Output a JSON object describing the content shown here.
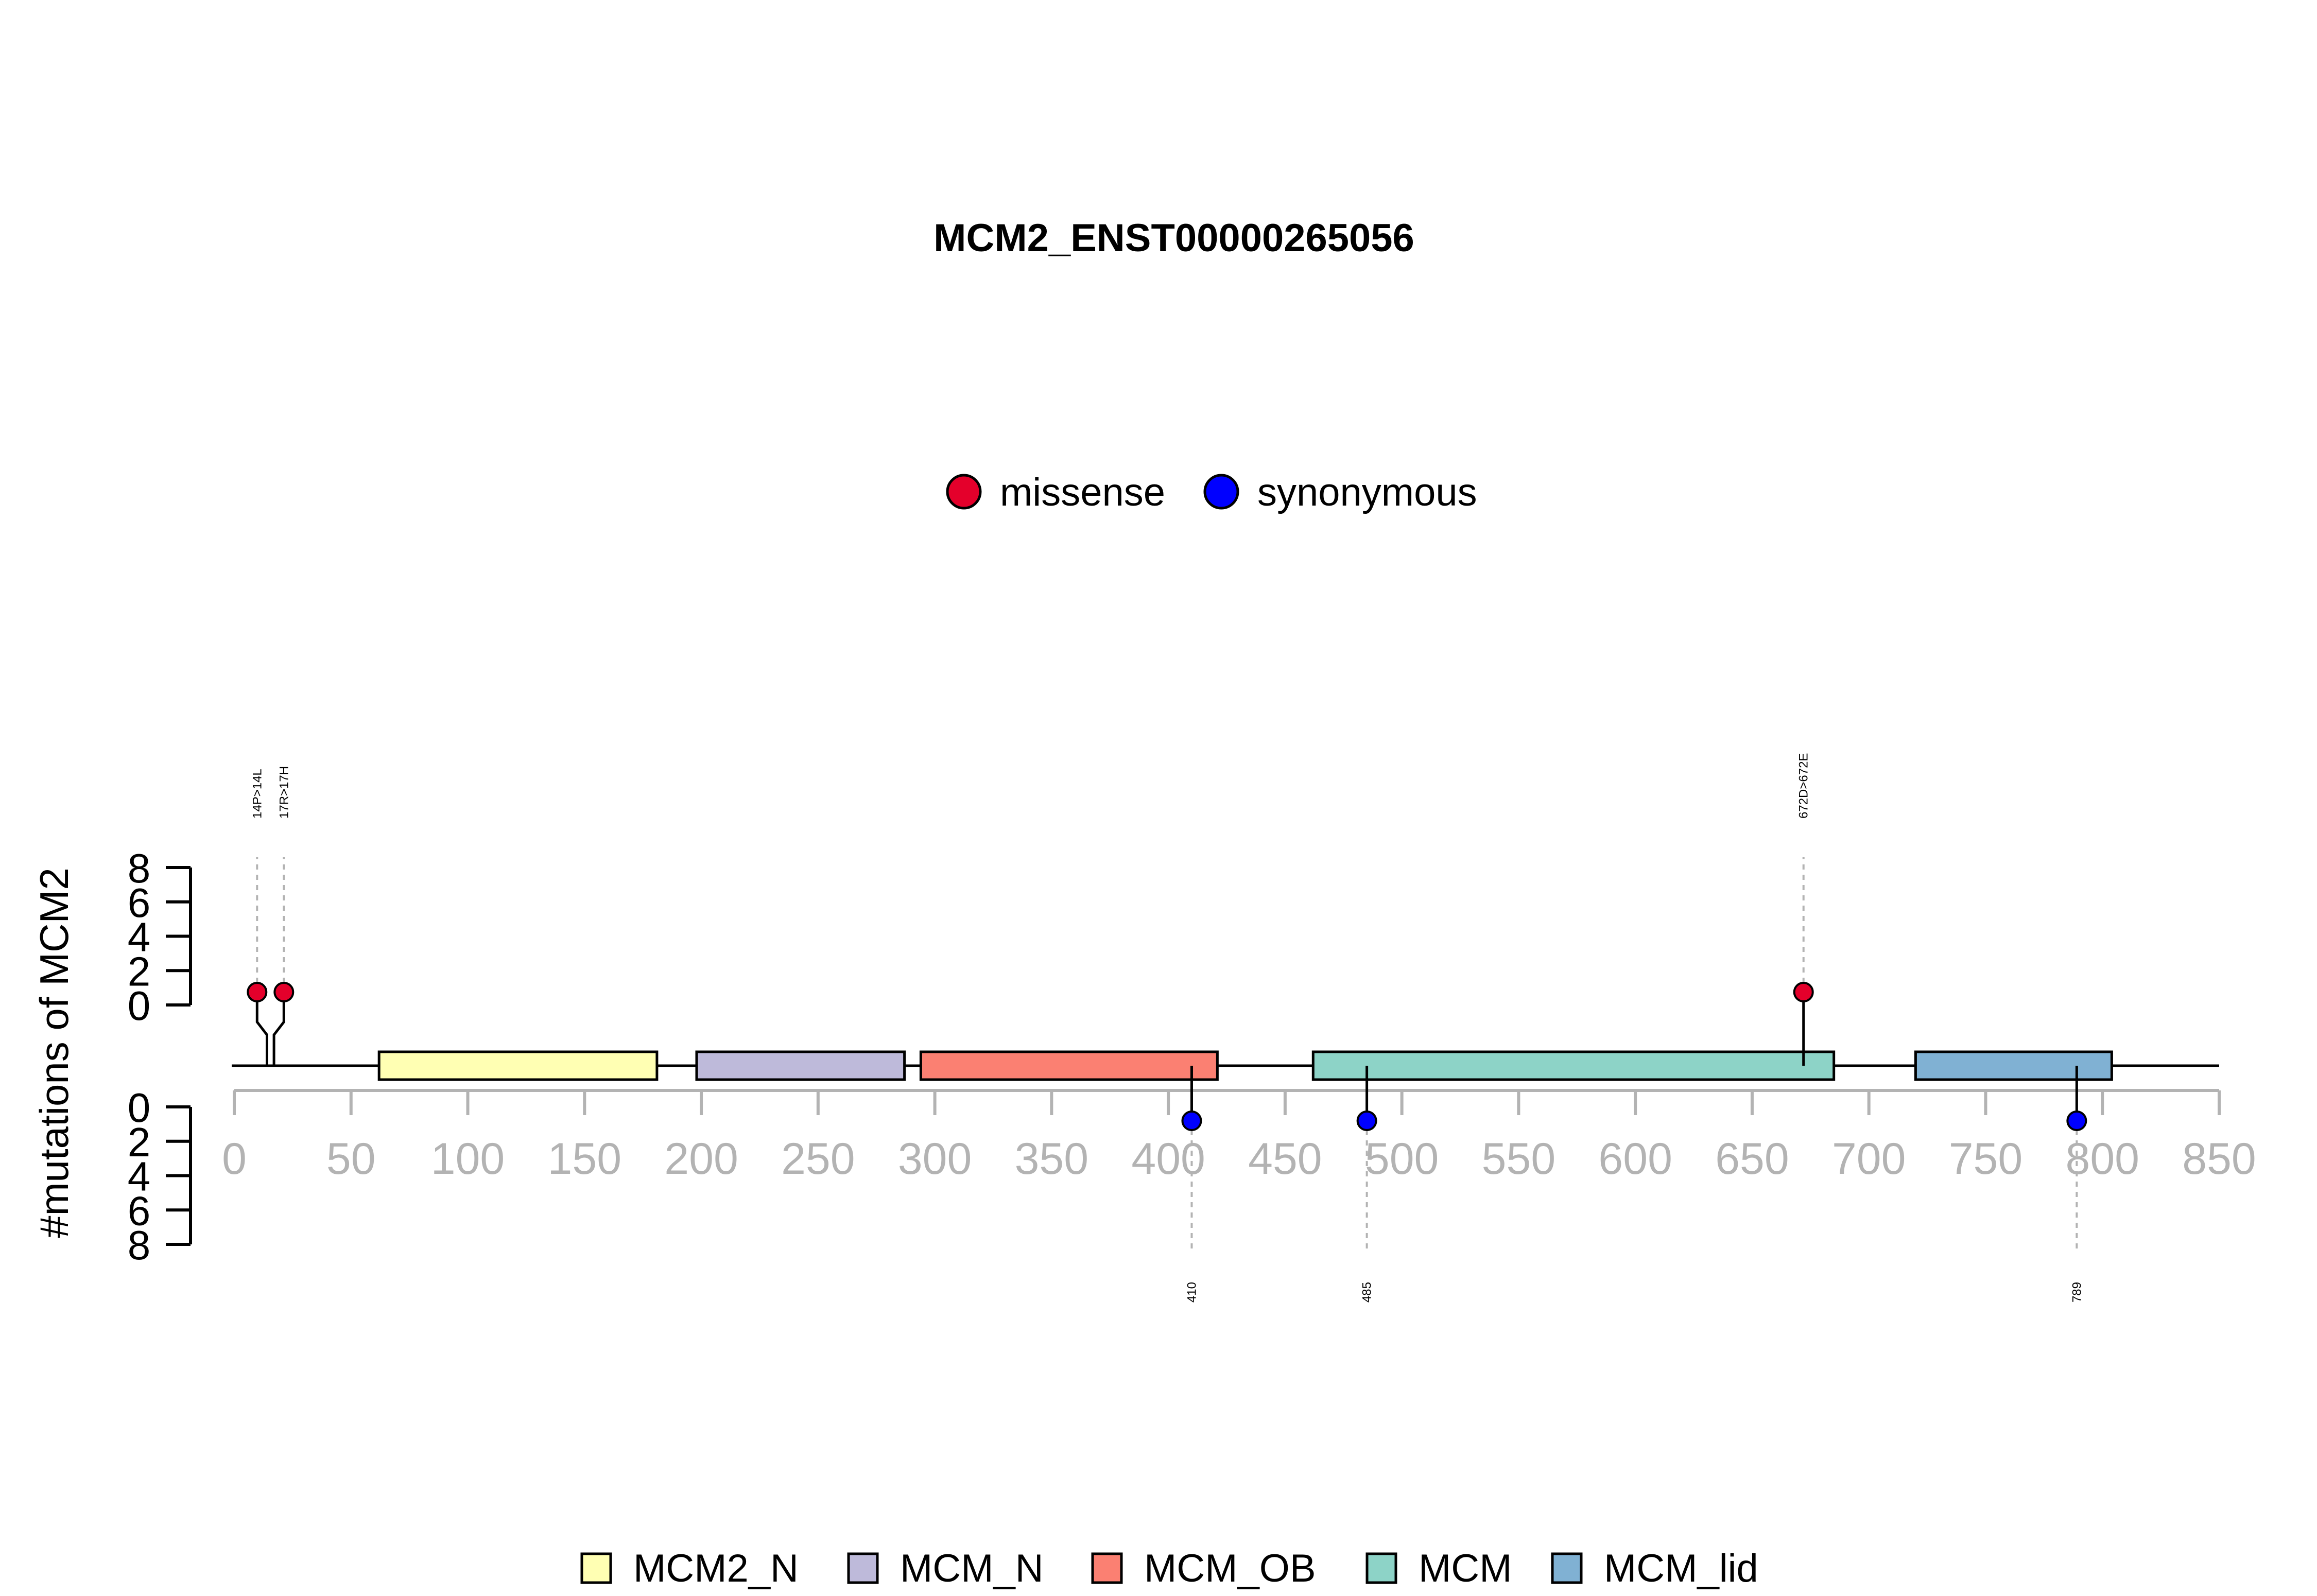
{
  "chart_data": {
    "type": "lollipop",
    "title": "MCM2_ENST00000265056",
    "ylabel": "#mutations of MCM2",
    "xlim": [
      0,
      850
    ],
    "x_ticks": [
      0,
      50,
      100,
      150,
      200,
      250,
      300,
      350,
      400,
      450,
      500,
      550,
      600,
      650,
      700,
      750,
      800,
      850
    ],
    "y_ticks_top": [
      0,
      2,
      4,
      6,
      8
    ],
    "y_ticks_bottom": [
      0,
      2,
      4,
      6,
      8
    ],
    "colors": {
      "missense": "#e4002b",
      "synonymous": "#0000ff",
      "MCM2_N": "#ffffb3",
      "MCM_N": "#bebada",
      "MCM_OB": "#fb8072",
      "MCM": "#8dd3c7",
      "MCM_lid": "#80b1d3"
    },
    "mutation_legend": [
      {
        "name": "missense",
        "color": "#e4002b"
      },
      {
        "name": "synonymous",
        "color": "#0000ff"
      }
    ],
    "domains": [
      {
        "name": "MCM2_N",
        "start": 62,
        "end": 181,
        "color": "#ffffb3"
      },
      {
        "name": "MCM_N",
        "start": 198,
        "end": 287,
        "color": "#bebada"
      },
      {
        "name": "MCM_OB",
        "start": 294,
        "end": 421,
        "color": "#fb8072"
      },
      {
        "name": "MCM",
        "start": 462,
        "end": 685,
        "color": "#8dd3c7"
      },
      {
        "name": "MCM_lid",
        "start": 720,
        "end": 804,
        "color": "#80b1d3"
      }
    ],
    "mutations": [
      {
        "position": 14,
        "label": "14P>14L",
        "count": 1,
        "type": "missense",
        "side": "top"
      },
      {
        "position": 17,
        "label": "17R>17H",
        "count": 1,
        "type": "missense",
        "side": "top"
      },
      {
        "position": 672,
        "label": "672D>672E",
        "count": 1,
        "type": "missense",
        "side": "top"
      },
      {
        "position": 410,
        "label": "410",
        "count": 1,
        "type": "synonymous",
        "side": "bottom"
      },
      {
        "position": 485,
        "label": "485",
        "count": 1,
        "type": "synonymous",
        "side": "bottom"
      },
      {
        "position": 789,
        "label": "789",
        "count": 1,
        "type": "synonymous",
        "side": "bottom"
      }
    ]
  }
}
